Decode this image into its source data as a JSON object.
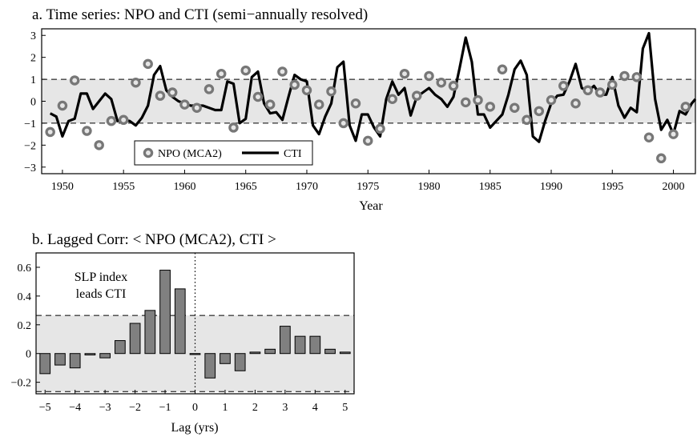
{
  "chart_data": [
    {
      "type": "line",
      "title": "a. Time series:  NPO and CTI (semi−annually resolved)",
      "xlabel": "Year",
      "ylabel": "",
      "xlim": [
        1948.3,
        2001.8
      ],
      "ylim": [
        -3.3,
        3.3
      ],
      "xticks": [
        1950,
        1955,
        1960,
        1965,
        1970,
        1975,
        1980,
        1985,
        1990,
        1995,
        2000
      ],
      "xtick_labels": [
        "1950",
        "1955",
        "1960",
        "1965",
        "1970",
        "1975",
        "1980",
        "1985",
        "1990",
        "1995",
        "2000"
      ],
      "yticks": [
        -3,
        -2,
        -1,
        0,
        1,
        2,
        3
      ],
      "ytick_labels": [
        "−3",
        "−2",
        "−1",
        "0",
        "1",
        "2",
        "3"
      ],
      "shaded_band": [
        -1,
        1
      ],
      "dashed_lines": [
        -1,
        1
      ],
      "legend_position": "lower-left",
      "series": [
        {
          "name": "NPO (MCA2)",
          "style": "circle-markers",
          "color": "#777777",
          "points": [
            [
              1949,
              -1.4
            ],
            [
              1950,
              -0.2
            ],
            [
              1951,
              0.95
            ],
            [
              1952,
              -1.35
            ],
            [
              1953,
              -2.0
            ],
            [
              1954,
              -0.9
            ],
            [
              1955,
              -0.85
            ],
            [
              1956,
              0.85
            ],
            [
              1957,
              1.7
            ],
            [
              1958,
              0.25
            ],
            [
              1959,
              0.4
            ],
            [
              1960,
              -0.15
            ],
            [
              1961,
              -0.3
            ],
            [
              1962,
              0.55
            ],
            [
              1963,
              1.25
            ],
            [
              1964,
              -1.2
            ],
            [
              1965,
              1.4
            ],
            [
              1966,
              0.2
            ],
            [
              1967,
              -0.15
            ],
            [
              1968,
              1.35
            ],
            [
              1969,
              0.75
            ],
            [
              1970,
              0.5
            ],
            [
              1971,
              -0.15
            ],
            [
              1972,
              0.45
            ],
            [
              1973,
              -1.0
            ],
            [
              1974,
              -0.1
            ],
            [
              1975,
              -1.8
            ],
            [
              1976,
              -1.25
            ],
            [
              1977,
              0.1
            ],
            [
              1978,
              1.25
            ],
            [
              1979,
              0.25
            ],
            [
              1980,
              1.15
            ],
            [
              1981,
              0.85
            ],
            [
              1982,
              0.7
            ],
            [
              1983,
              -0.05
            ],
            [
              1984,
              0.05
            ],
            [
              1985,
              -0.25
            ],
            [
              1986,
              1.45
            ],
            [
              1987,
              -0.3
            ],
            [
              1988,
              -0.85
            ],
            [
              1989,
              -0.45
            ],
            [
              1990,
              0.05
            ],
            [
              1991,
              0.7
            ],
            [
              1992,
              -0.1
            ],
            [
              1993,
              0.5
            ],
            [
              1994,
              0.4
            ],
            [
              1995,
              0.75
            ],
            [
              1996,
              1.15
            ],
            [
              1997,
              1.1
            ],
            [
              1998,
              -1.65
            ],
            [
              1999,
              -2.6
            ],
            [
              2000,
              -1.5
            ],
            [
              2001,
              -0.25
            ]
          ]
        },
        {
          "name": "CTI",
          "style": "thick-line",
          "color": "#000000",
          "points": [
            [
              1949,
              -0.55
            ],
            [
              1949.5,
              -0.7
            ],
            [
              1950,
              -1.6
            ],
            [
              1950.5,
              -0.9
            ],
            [
              1951,
              -0.8
            ],
            [
              1951.5,
              0.35
            ],
            [
              1952,
              0.35
            ],
            [
              1952.5,
              -0.35
            ],
            [
              1953,
              0.0
            ],
            [
              1953.5,
              0.35
            ],
            [
              1954,
              0.1
            ],
            [
              1954.5,
              -0.9
            ],
            [
              1955,
              -0.85
            ],
            [
              1955.5,
              -0.9
            ],
            [
              1956,
              -1.1
            ],
            [
              1956.5,
              -0.75
            ],
            [
              1957,
              -0.2
            ],
            [
              1957.5,
              1.2
            ],
            [
              1958,
              1.6
            ],
            [
              1958.5,
              0.5
            ],
            [
              1959,
              0.2
            ],
            [
              1959.5,
              0.0
            ],
            [
              1960,
              -0.1
            ],
            [
              1960.5,
              -0.2
            ],
            [
              1961,
              -0.2
            ],
            [
              1961.5,
              -0.2
            ],
            [
              1962,
              -0.3
            ],
            [
              1962.5,
              -0.4
            ],
            [
              1963,
              -0.4
            ],
            [
              1963.5,
              0.9
            ],
            [
              1964,
              0.8
            ],
            [
              1964.5,
              -1.0
            ],
            [
              1965,
              -0.8
            ],
            [
              1965.5,
              1.1
            ],
            [
              1966,
              1.35
            ],
            [
              1966.5,
              -0.1
            ],
            [
              1967,
              -0.55
            ],
            [
              1967.5,
              -0.5
            ],
            [
              1968,
              -0.85
            ],
            [
              1968.5,
              0.2
            ],
            [
              1969,
              1.2
            ],
            [
              1969.5,
              1.0
            ],
            [
              1970,
              0.9
            ],
            [
              1970.5,
              -1.1
            ],
            [
              1971,
              -1.5
            ],
            [
              1971.5,
              -0.7
            ],
            [
              1972,
              -0.1
            ],
            [
              1972.5,
              1.55
            ],
            [
              1973,
              1.8
            ],
            [
              1973.5,
              -1.1
            ],
            [
              1974,
              -1.8
            ],
            [
              1974.5,
              -0.6
            ],
            [
              1975,
              -0.6
            ],
            [
              1975.5,
              -1.2
            ],
            [
              1976,
              -1.6
            ],
            [
              1976.5,
              0.1
            ],
            [
              1977,
              0.9
            ],
            [
              1977.5,
              0.3
            ],
            [
              1978,
              0.6
            ],
            [
              1978.5,
              -0.65
            ],
            [
              1979,
              0.2
            ],
            [
              1979.5,
              0.4
            ],
            [
              1980,
              0.6
            ],
            [
              1980.5,
              0.3
            ],
            [
              1981,
              0.1
            ],
            [
              1981.5,
              -0.25
            ],
            [
              1982,
              0.2
            ],
            [
              1982.5,
              1.5
            ],
            [
              1983,
              2.9
            ],
            [
              1983.5,
              1.8
            ],
            [
              1984,
              -0.6
            ],
            [
              1984.5,
              -0.6
            ],
            [
              1985,
              -1.2
            ],
            [
              1985.5,
              -0.9
            ],
            [
              1986,
              -0.6
            ],
            [
              1986.5,
              0.3
            ],
            [
              1987,
              1.45
            ],
            [
              1987.5,
              1.85
            ],
            [
              1988,
              1.2
            ],
            [
              1988.5,
              -1.6
            ],
            [
              1989,
              -1.85
            ],
            [
              1989.5,
              -0.9
            ],
            [
              1990,
              -0.1
            ],
            [
              1990.5,
              0.25
            ],
            [
              1991,
              0.3
            ],
            [
              1991.5,
              0.9
            ],
            [
              1992,
              1.7
            ],
            [
              1992.5,
              0.6
            ],
            [
              1993,
              0.45
            ],
            [
              1993.5,
              0.7
            ],
            [
              1994,
              0.3
            ],
            [
              1994.5,
              0.3
            ],
            [
              1995,
              1.1
            ],
            [
              1995.5,
              -0.2
            ],
            [
              1996,
              -0.75
            ],
            [
              1996.5,
              -0.3
            ],
            [
              1997,
              -0.5
            ],
            [
              1997.5,
              2.4
            ],
            [
              1998,
              3.1
            ],
            [
              1998.5,
              0.1
            ],
            [
              1999,
              -1.3
            ],
            [
              1999.5,
              -0.85
            ],
            [
              2000,
              -1.5
            ],
            [
              2000.5,
              -0.45
            ],
            [
              2001,
              -0.6
            ],
            [
              2001.5,
              -0.1
            ],
            [
              2001.8,
              0.1
            ]
          ]
        }
      ]
    },
    {
      "type": "bar",
      "title": "b. Lagged Corr:  < NPO (MCA2), CTI >",
      "xlabel": "Lag (yrs)",
      "ylabel": "",
      "annotation": [
        "SLP index",
        "leads CTI"
      ],
      "xlim": [
        -5.3,
        5.3
      ],
      "ylim": [
        -0.28,
        0.7
      ],
      "xticks": [
        -5,
        -4,
        -3,
        -2,
        -1,
        0,
        1,
        2,
        3,
        4,
        5
      ],
      "xtick_labels": [
        "−5",
        "−4",
        "−3",
        "−2",
        "−1",
        "0",
        "1",
        "2",
        "3",
        "4",
        "5"
      ],
      "yticks": [
        -0.2,
        0,
        0.2,
        0.4,
        0.6
      ],
      "ytick_labels": [
        "−0.2",
        "0",
        "0.2",
        "0.4",
        "0.6"
      ],
      "shaded_band": [
        -0.265,
        0.265
      ],
      "dashed_lines": [
        -0.265,
        0.265
      ],
      "reference_line_x": 0,
      "bar_color": "#808080",
      "lags": [
        -5,
        -4.5,
        -4,
        -3.5,
        -3,
        -2.5,
        -2,
        -1.5,
        -1,
        -0.5,
        0,
        0.5,
        1,
        1.5,
        2,
        2.5,
        3,
        3.5,
        4,
        4.5,
        5
      ],
      "values": [
        -0.14,
        -0.08,
        -0.1,
        -0.01,
        -0.03,
        0.09,
        0.21,
        0.3,
        0.58,
        0.45,
        0.0,
        -0.17,
        -0.07,
        -0.12,
        0.01,
        0.03,
        0.19,
        0.12,
        0.12,
        0.03,
        0.01
      ]
    }
  ]
}
